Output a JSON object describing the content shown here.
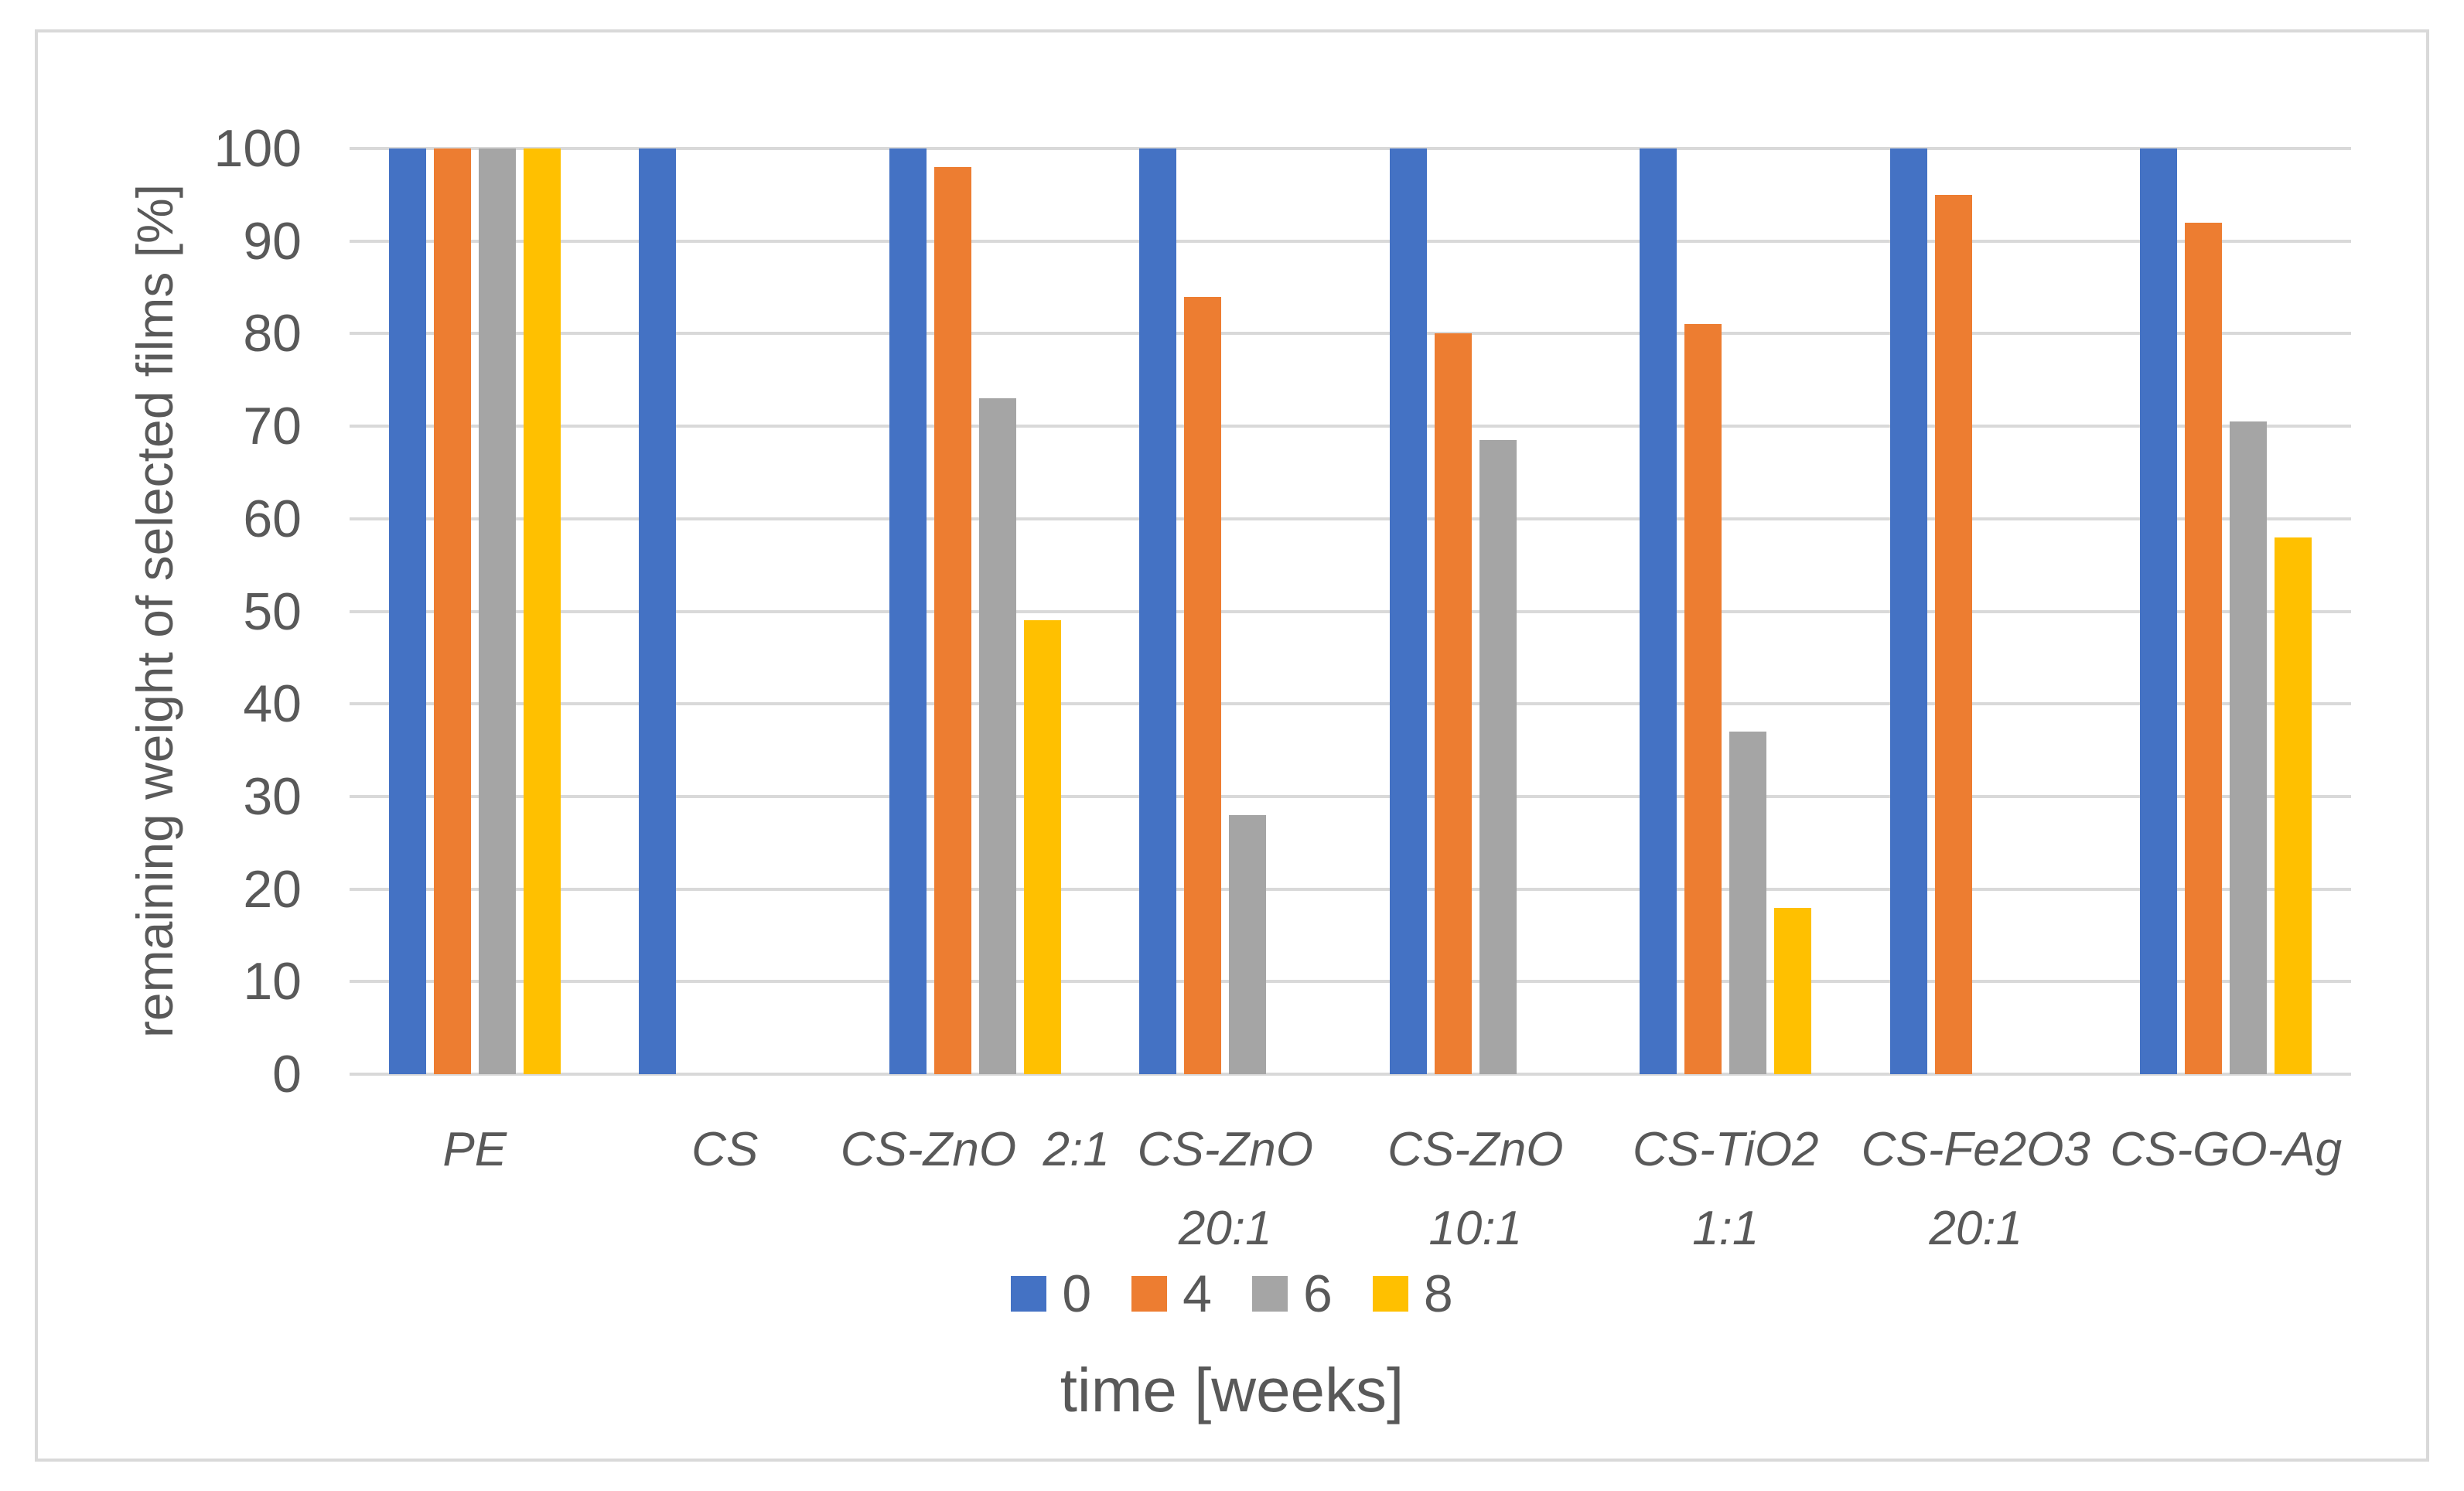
{
  "chart_data": {
    "type": "bar",
    "title": "",
    "xlabel": "time [weeks]",
    "ylabel": "remaining weight of selected films [%]",
    "ylim": [
      0,
      100
    ],
    "ytick_step": 10,
    "yticks": [
      0,
      10,
      20,
      30,
      40,
      50,
      60,
      70,
      80,
      90,
      100
    ],
    "grid": true,
    "legend_position": "bottom-center",
    "categories": [
      "PE",
      "CS",
      "CS-ZnO  2:1",
      "CS-ZnO 20:1",
      "CS-ZnO 10:1",
      "CS-TiO2 1:1",
      "CS-Fe2O3 20:1",
      "CS-GO-Ag"
    ],
    "category_lines": [
      [
        "PE"
      ],
      [
        "CS"
      ],
      [
        "CS-ZnO  2:1"
      ],
      [
        "CS-ZnO",
        "20:1"
      ],
      [
        "CS-ZnO",
        "10:1"
      ],
      [
        "CS-TiO2",
        "1:1"
      ],
      [
        "CS-Fe2O3",
        "20:1"
      ],
      [
        "CS-GO-Ag"
      ]
    ],
    "series": [
      {
        "name": "0",
        "color": "#4472C4",
        "values": [
          100,
          100,
          100,
          100,
          100,
          100,
          100,
          100
        ]
      },
      {
        "name": "4",
        "color": "#ED7D31",
        "values": [
          100,
          0,
          98,
          84,
          80,
          81,
          95,
          92
        ]
      },
      {
        "name": "6",
        "color": "#A5A5A5",
        "values": [
          100,
          0,
          73,
          28,
          68.5,
          37,
          0,
          70.5
        ]
      },
      {
        "name": "8",
        "color": "#FFC000",
        "values": [
          100,
          0,
          49,
          0,
          0,
          18,
          0,
          58
        ]
      }
    ],
    "style": {
      "grid_color": "#D9D9D9",
      "frame_border_color": "#D9D9D9",
      "text_color": "#595959",
      "background": "#ffffff"
    }
  }
}
